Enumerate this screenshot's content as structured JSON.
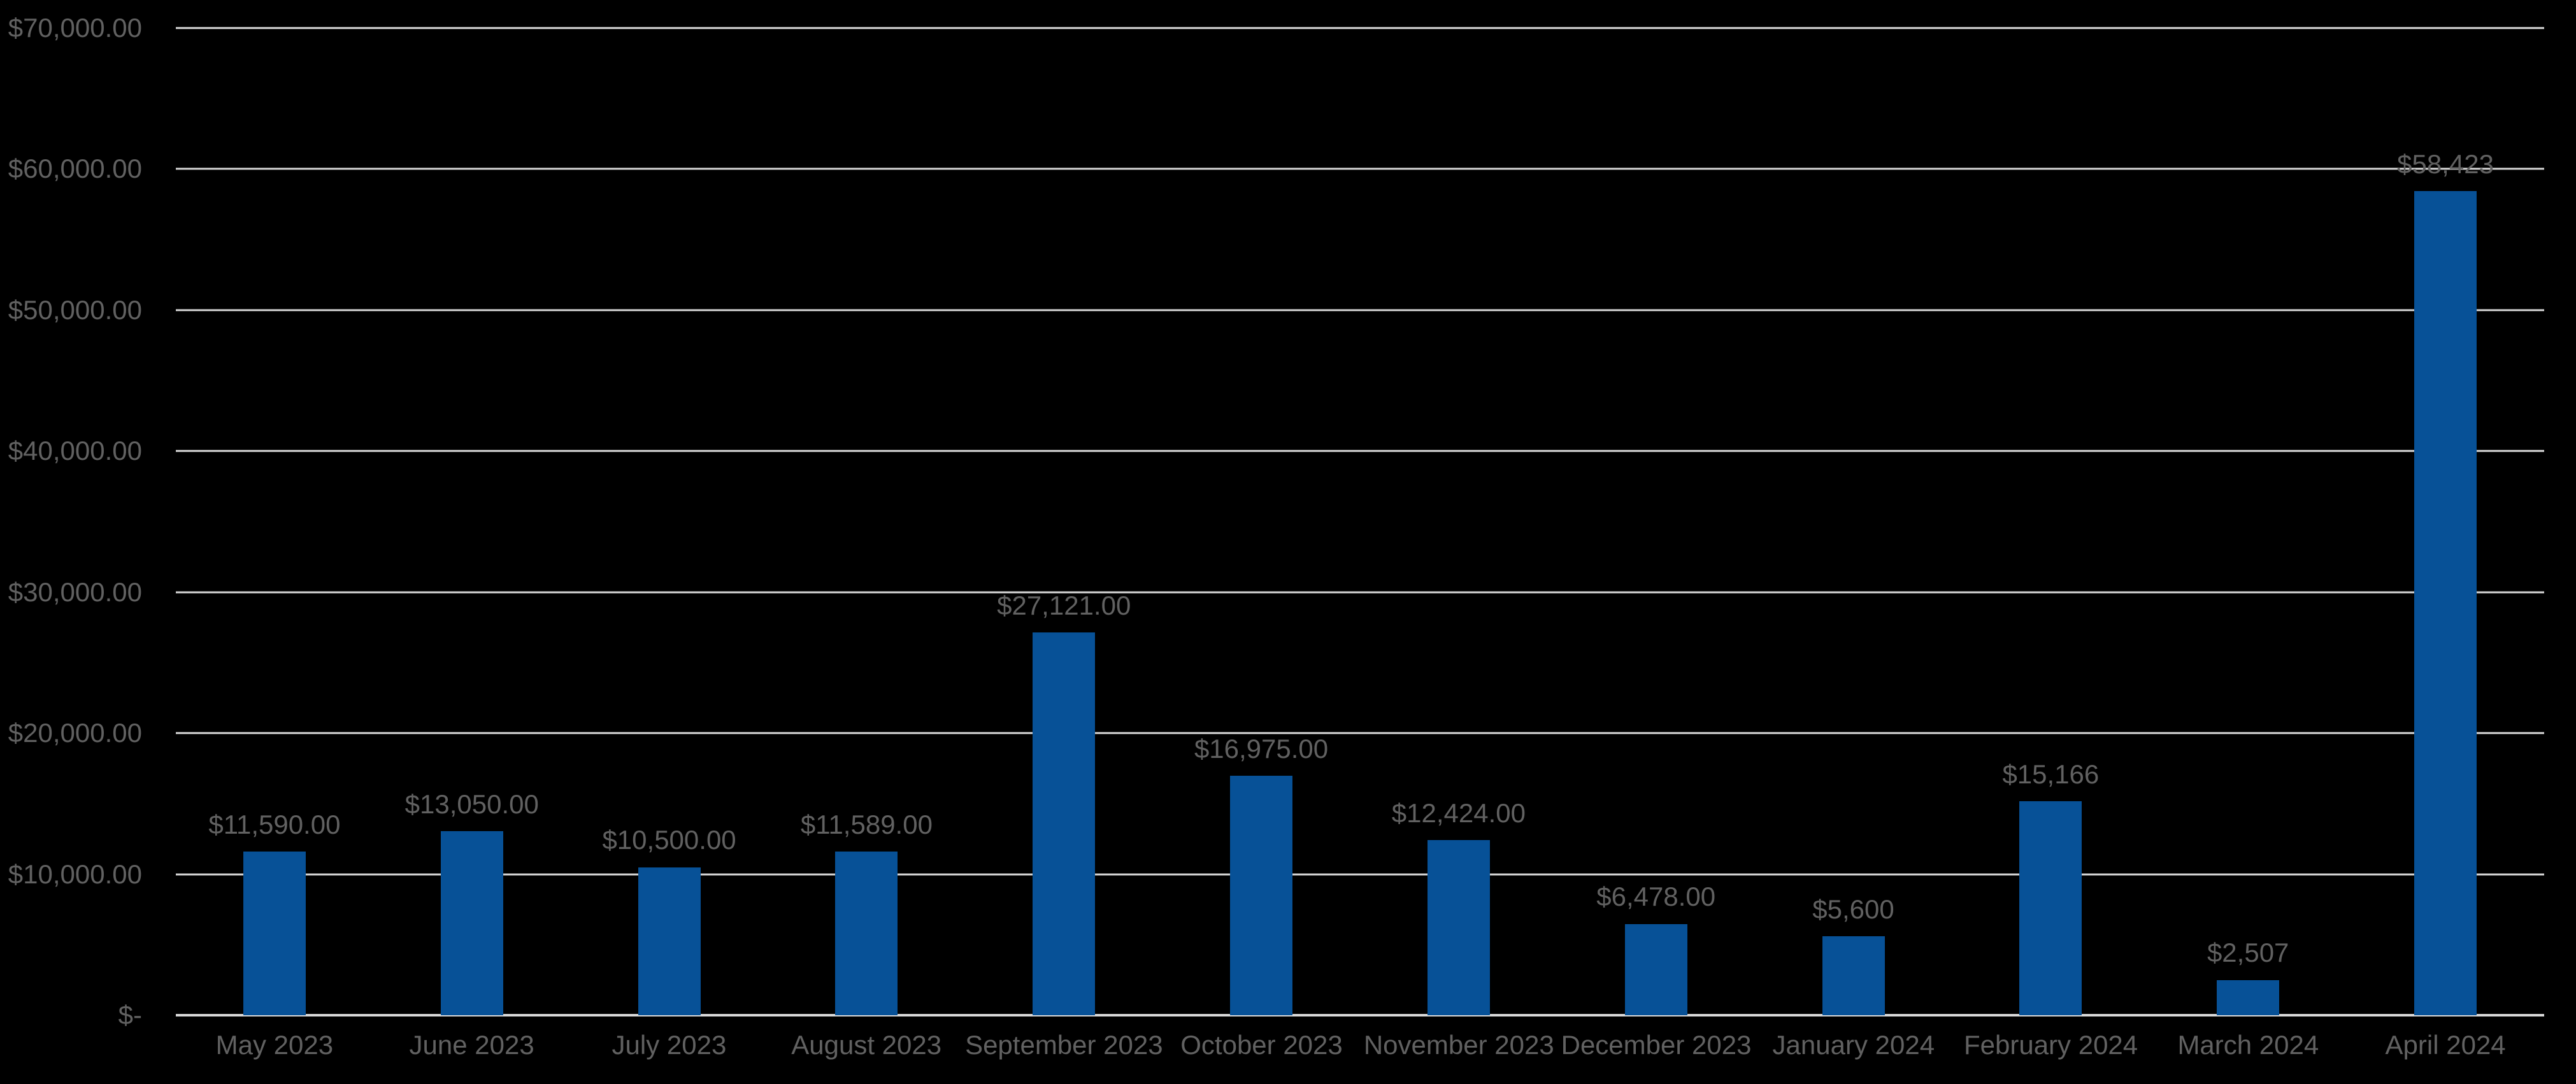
{
  "chart_data": {
    "type": "bar",
    "title": "",
    "xlabel": "",
    "ylabel": "",
    "legend": false,
    "grid": true,
    "ylim": [
      0,
      70000
    ],
    "ytick_step": 10000,
    "categories": [
      "May 2023",
      "June 2023",
      "July 2023",
      "August 2023",
      "September 2023",
      "October 2023",
      "November 2023",
      "December 2023",
      "January 2024",
      "February 2024",
      "March 2024",
      "April 2024"
    ],
    "values": [
      11590,
      13050,
      10500,
      11589,
      27121,
      16975,
      12424,
      6478,
      5600,
      15166,
      2507,
      58423
    ],
    "data_labels": [
      "$11,590.00",
      "$13,050.00",
      "$10,500.00",
      "$11,589.00",
      "$27,121.00",
      "$16,975.00",
      "$12,424.00",
      "$6,478.00",
      "$5,600",
      "$15,166",
      "$2,507",
      "$58,423"
    ],
    "yticks": [
      {
        "value": 70000,
        "label": "$70,000.00"
      },
      {
        "value": 60000,
        "label": "$60,000.00"
      },
      {
        "value": 50000,
        "label": "$50,000.00"
      },
      {
        "value": 40000,
        "label": "$40,000.00"
      },
      {
        "value": 30000,
        "label": "$30,000.00"
      },
      {
        "value": 20000,
        "label": "$20,000.00"
      },
      {
        "value": 10000,
        "label": "$10,000.00"
      },
      {
        "value": 0,
        "label": "$-"
      }
    ],
    "colors": {
      "background": "#000000",
      "bar_fill": "#075197",
      "gridline": "#D9D9D9",
      "axis_text": "#616161",
      "data_label_text": "#616161"
    }
  }
}
